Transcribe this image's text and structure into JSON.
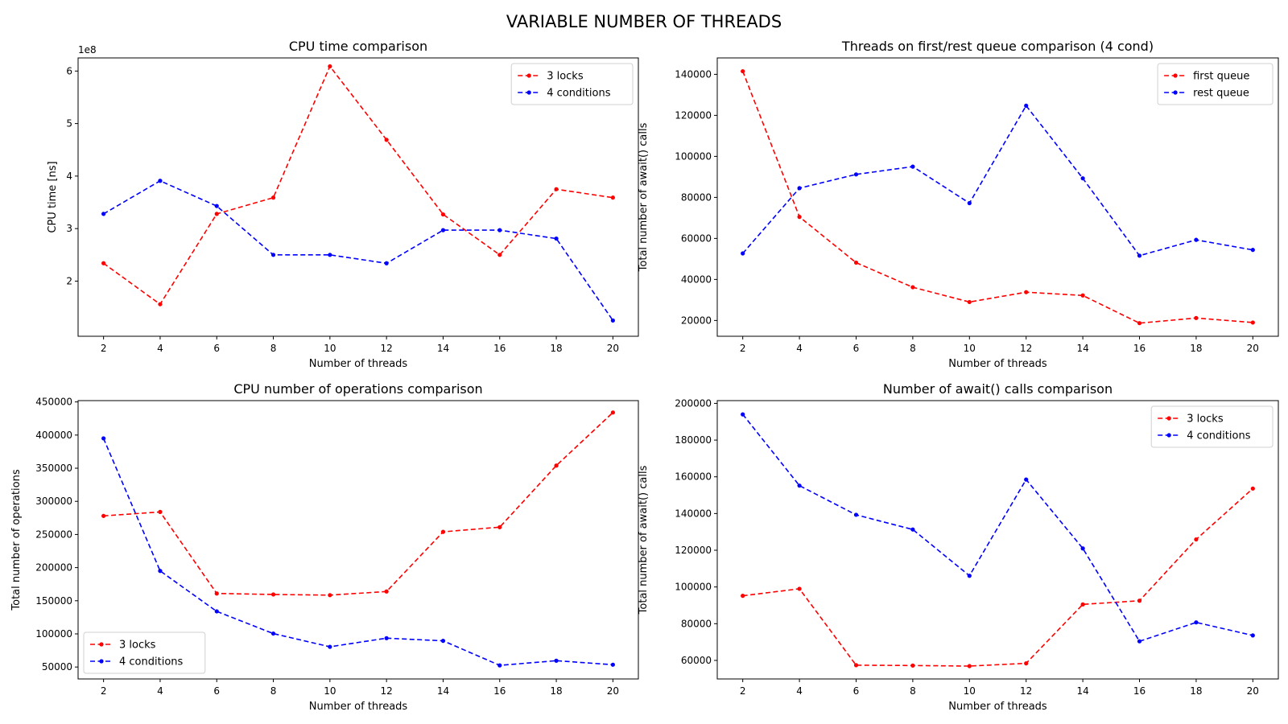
{
  "figure": {
    "suptitle": "VARIABLE NUMBER OF THREADS"
  },
  "colors": {
    "red": "#ff0000",
    "blue": "#0000ff"
  },
  "chart_data": [
    {
      "type": "line",
      "title": "CPU time comparison",
      "xlabel": "Number of threads",
      "ylabel": "CPU time [ns]",
      "offset_text": "1e8",
      "y_scale_factor": 100000000,
      "xlim": [
        1.1,
        20.9
      ],
      "ylim": [
        95000000,
        625000000
      ],
      "xticks": [
        2,
        4,
        6,
        8,
        10,
        12,
        14,
        16,
        18,
        20
      ],
      "yticks": [
        200000000,
        300000000,
        400000000,
        500000000,
        600000000
      ],
      "x": [
        2,
        4,
        6,
        8,
        10,
        12,
        14,
        16,
        18,
        20
      ],
      "legend_loc": "upper right",
      "series": [
        {
          "name": "3 locks",
          "color": "#ff0000",
          "values": [
            234000000,
            156000000,
            328000000,
            359000000,
            609000000,
            469000000,
            327000000,
            250000000,
            375000000,
            359000000
          ]
        },
        {
          "name": "4 conditions",
          "color": "#0000ff",
          "values": [
            328000000,
            391000000,
            343000000,
            250000000,
            250000000,
            234000000,
            297000000,
            297000000,
            281000000,
            125000000
          ]
        }
      ]
    },
    {
      "type": "line",
      "title": "Threads on first/rest queue comparison (4 cond)",
      "xlabel": "Number of threads",
      "ylabel": "Total number of await() calls",
      "xlim": [
        1.1,
        20.9
      ],
      "ylim": [
        12300,
        148000
      ],
      "xticks": [
        2,
        4,
        6,
        8,
        10,
        12,
        14,
        16,
        18,
        20
      ],
      "yticks": [
        20000,
        40000,
        60000,
        80000,
        100000,
        120000,
        140000
      ],
      "x": [
        2,
        4,
        6,
        8,
        10,
        12,
        14,
        16,
        18,
        20
      ],
      "legend_loc": "upper right",
      "series": [
        {
          "name": "first queue",
          "color": "#ff0000",
          "values": [
            141500,
            70500,
            48200,
            36200,
            29000,
            33800,
            32200,
            18700,
            21200,
            19000
          ]
        },
        {
          "name": "rest queue",
          "color": "#0000ff",
          "values": [
            52700,
            84500,
            91200,
            95000,
            77200,
            124700,
            89300,
            51600,
            59300,
            54400
          ]
        }
      ]
    },
    {
      "type": "line",
      "title": "CPU number of operations comparison",
      "xlabel": "Number of threads",
      "ylabel": "Total number of operations",
      "xlim": [
        1.1,
        20.9
      ],
      "ylim": [
        32000,
        452000
      ],
      "xticks": [
        2,
        4,
        6,
        8,
        10,
        12,
        14,
        16,
        18,
        20
      ],
      "yticks": [
        50000,
        100000,
        150000,
        200000,
        250000,
        300000,
        350000,
        400000,
        450000
      ],
      "x": [
        2,
        4,
        6,
        8,
        10,
        12,
        14,
        16,
        18,
        20
      ],
      "legend_loc": "lower left",
      "series": [
        {
          "name": "3 locks",
          "color": "#ff0000",
          "values": [
            278000,
            284000,
            161000,
            159500,
            158500,
            164000,
            254000,
            261000,
            354000,
            434000
          ]
        },
        {
          "name": "4 conditions",
          "color": "#0000ff",
          "values": [
            395000,
            195000,
            134000,
            100500,
            80500,
            93500,
            89500,
            52500,
            59500,
            53500
          ]
        }
      ]
    },
    {
      "type": "line",
      "title": "Number of await() calls comparison",
      "xlabel": "Number of threads",
      "ylabel": "Total number of await() calls",
      "xlim": [
        1.1,
        20.9
      ],
      "ylim": [
        49900,
        201500
      ],
      "xticks": [
        2,
        4,
        6,
        8,
        10,
        12,
        14,
        16,
        18,
        20
      ],
      "yticks": [
        60000,
        80000,
        100000,
        120000,
        140000,
        160000,
        180000,
        200000
      ],
      "x": [
        2,
        4,
        6,
        8,
        10,
        12,
        14,
        16,
        18,
        20
      ],
      "legend_loc": "upper right",
      "series": [
        {
          "name": "3 locks",
          "color": "#ff0000",
          "values": [
            95200,
            99000,
            57400,
            57200,
            56900,
            58400,
            90500,
            92500,
            125900,
            153600
          ]
        },
        {
          "name": "4 conditions",
          "color": "#0000ff",
          "values": [
            194000,
            155200,
            139300,
            131300,
            106100,
            158500,
            121000,
            70400,
            80700,
            73600
          ]
        }
      ]
    }
  ]
}
